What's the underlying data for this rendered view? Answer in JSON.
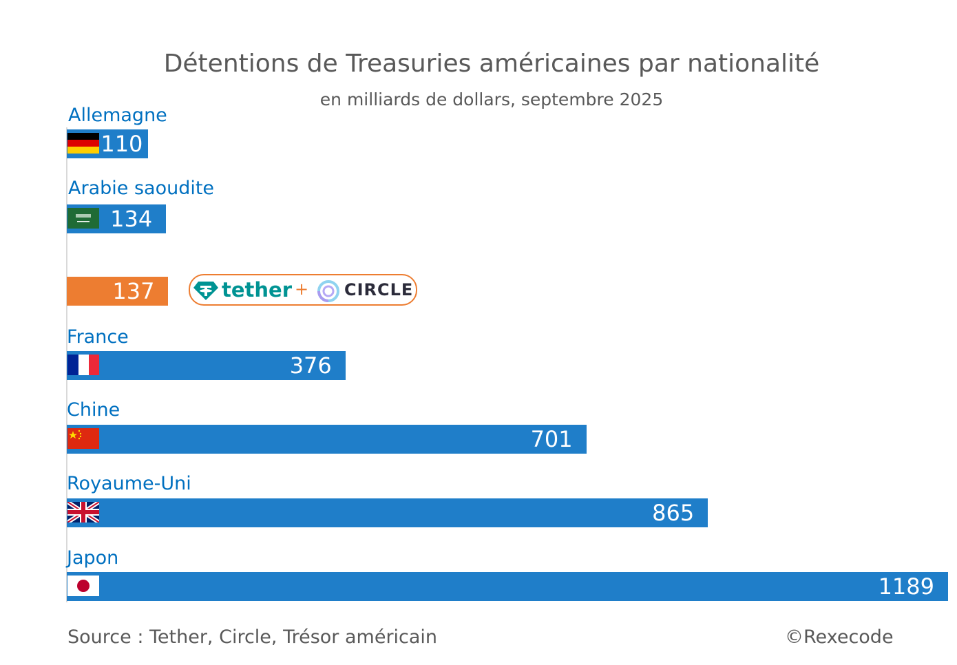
{
  "chart_data": {
    "type": "bar",
    "orientation": "horizontal",
    "title": "Détentions de Treasuries américaines par nationalité",
    "subtitle": "en milliards de dollars, septembre 2025",
    "categories": [
      "Allemagne",
      "Arabie saoudite",
      "",
      "France",
      "Chine",
      "Royaume-Uni",
      "Japon"
    ],
    "values": [
      110,
      134,
      137,
      376,
      701,
      865,
      1189
    ],
    "value_labels": [
      "110",
      "134",
      "137",
      "376",
      "701",
      "865",
      "1189"
    ],
    "flags": [
      "germany-flag",
      "saudi-arabia-flag",
      "",
      "france-flag",
      "china-flag",
      "uk-flag",
      "japan-flag"
    ],
    "bar_colors": [
      "#1F7EC9",
      "#1F7EC9",
      "#ED7D31",
      "#1F7EC9",
      "#1F7EC9",
      "#1F7EC9",
      "#1F7EC9"
    ],
    "xlim": [
      0,
      1189
    ],
    "grid": false,
    "annotation": {
      "tether": "tether",
      "plus": "+",
      "circle": "CIRCLE"
    }
  },
  "footer": {
    "source": "Source : Tether, Circle, Trésor américain",
    "copyright": "©Rexecode"
  }
}
